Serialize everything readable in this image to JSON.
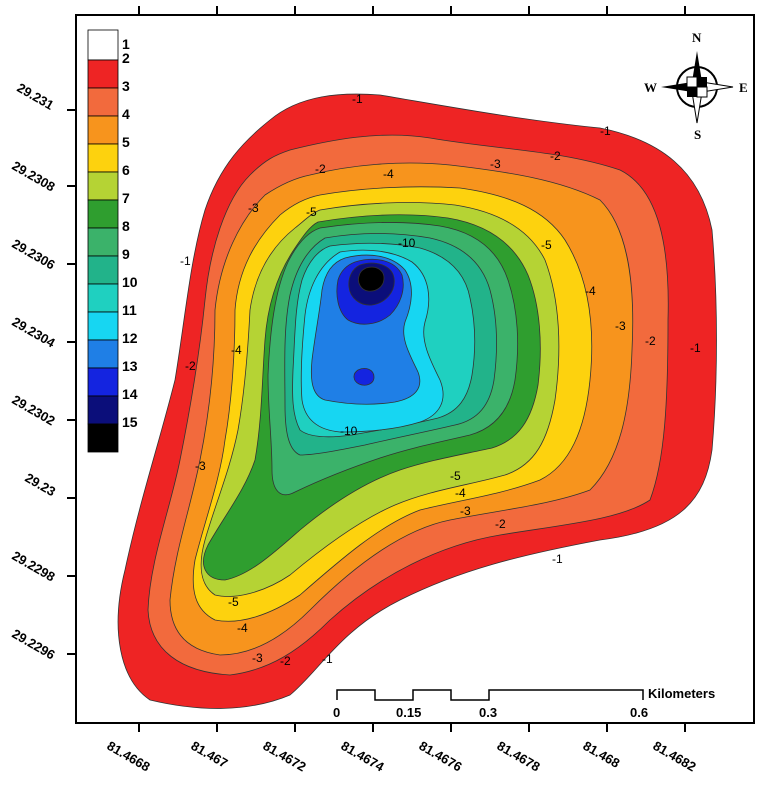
{
  "legend": {
    "classes": [
      {
        "label": "1",
        "color": "#ffffff"
      },
      {
        "label": "2",
        "color": "#ee2424"
      },
      {
        "label": "3",
        "color": "#f26a3d"
      },
      {
        "label": "4",
        "color": "#f7941d"
      },
      {
        "label": "5",
        "color": "#fdd20e"
      },
      {
        "label": "6",
        "color": "#b5d334"
      },
      {
        "label": "7",
        "color": "#2f9e2f"
      },
      {
        "label": "8",
        "color": "#3bb26a"
      },
      {
        "label": "9",
        "color": "#22b38a"
      },
      {
        "label": "10",
        "color": "#1fd0c0"
      },
      {
        "label": "11",
        "color": "#17d6f2"
      },
      {
        "label": "12",
        "color": "#1f7fe6"
      },
      {
        "label": "13",
        "color": "#1424e0"
      },
      {
        "label": "14",
        "color": "#0b0e7a"
      },
      {
        "label": "15",
        "color": "#000000"
      }
    ]
  },
  "axes": {
    "y_ticks": [
      "29.231",
      "29.2308",
      "29.2306",
      "29.2304",
      "29.2302",
      "29.23",
      "29.2298",
      "29.2296"
    ],
    "x_ticks": [
      "81.4668",
      "81.467",
      "81.4672",
      "81.4674",
      "81.4676",
      "81.4678",
      "81.468",
      "81.4682"
    ]
  },
  "contour_labels": [
    "-1",
    "-2",
    "-3",
    "-4",
    "-5",
    "-10"
  ],
  "compass": {
    "n": "N",
    "s": "S",
    "e": "E",
    "w": "W"
  },
  "scale_bar": {
    "unit": "Kilometers",
    "ticks": [
      "0",
      "0.15",
      "0.3",
      "0.6"
    ]
  }
}
